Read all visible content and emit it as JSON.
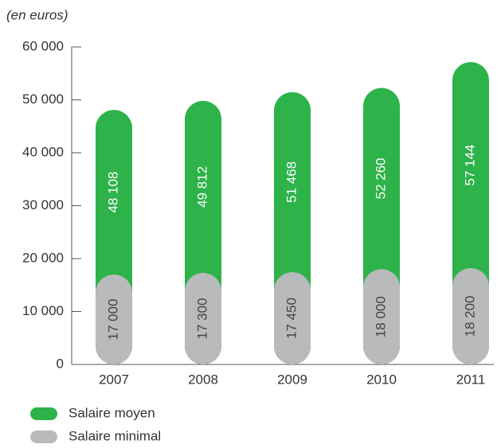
{
  "chart_data": {
    "type": "bar",
    "subtitle": "(en euros)",
    "categories": [
      "2007",
      "2008",
      "2009",
      "2010",
      "2011"
    ],
    "series": [
      {
        "name": "Salaire moyen",
        "color": "#2db34a",
        "values": [
          48108,
          49812,
          51468,
          52260,
          57144
        ],
        "value_labels": [
          "48 108",
          "49 812",
          "51 468",
          "52 260",
          "57 144"
        ]
      },
      {
        "name": "Salaire minimal",
        "color": "#b9babc",
        "values": [
          17000,
          17300,
          17450,
          18000,
          18200
        ],
        "value_labels": [
          "17 000",
          "17 300",
          "17 450",
          "18 000",
          "18 200"
        ]
      }
    ],
    "ylim": [
      0,
      60000
    ],
    "yticks": [
      0,
      {
        "value": 10000,
        "label": "10 000"
      },
      {
        "value": 20000,
        "label": "20 000"
      },
      {
        "value": 30000,
        "label": "30 000"
      },
      {
        "value": 40000,
        "label": "40 000"
      },
      {
        "value": 50000,
        "label": "50 000"
      },
      {
        "value": 60000,
        "label": "60 000"
      }
    ]
  }
}
